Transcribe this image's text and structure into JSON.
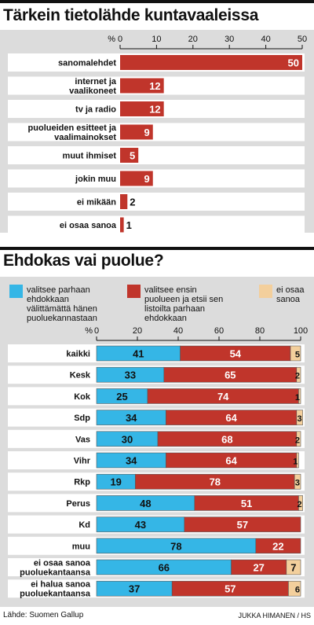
{
  "colors": {
    "red": "#c0352b",
    "blue": "#35b6e6",
    "beige": "#f3cf9c",
    "panel": "#dcdcdc",
    "row": "#ffffff",
    "text": "#111111"
  },
  "chart_data": [
    {
      "type": "bar",
      "orientation": "horizontal",
      "title": "Tärkein tietolähde kuntavaaleissa",
      "axis_unit": "%",
      "xlim": [
        0,
        50
      ],
      "ticks": [
        "0",
        "10",
        "20",
        "30",
        "40",
        "50"
      ],
      "categories": [
        "sanomalehdet",
        "internet ja vaalikoneet",
        "tv ja radio",
        "puolueiden esitteet ja vaalimainokset",
        "muut ihmiset",
        "jokin muu",
        "ei mikään",
        "ei osaa sanoa"
      ],
      "values": [
        50,
        12,
        12,
        9,
        5,
        9,
        2,
        1
      ]
    },
    {
      "type": "bar",
      "orientation": "horizontal",
      "stacked": true,
      "title": "Ehdokas vai puolue?",
      "axis_unit": "%",
      "xlim": [
        0,
        100
      ],
      "ticks": [
        "0",
        "20",
        "40",
        "60",
        "80",
        "100"
      ],
      "legend": [
        "valitsee parhaan ehdokkaan välittämättä hänen puoluekannastaan",
        "valitsee ensin puolueen ja etsii sen listoilta parhaan ehdokkaan",
        "ei osaa sanoa"
      ],
      "categories": [
        "kaikki",
        "Kesk",
        "Kok",
        "Sdp",
        "Vas",
        "Vihr",
        "Rkp",
        "Perus",
        "Kd",
        "muu",
        "ei osaa sanoa puoluekantaansa",
        "ei halua sanoa puoluekantaansa"
      ],
      "series": [
        {
          "name": "valitsee parhaan ehdokkaan välittämättä hänen puoluekannastaan",
          "values": [
            41,
            33,
            25,
            34,
            30,
            34,
            19,
            48,
            43,
            78,
            66,
            37
          ]
        },
        {
          "name": "valitsee ensin puolueen ja etsii sen listoilta parhaan ehdokkaan",
          "values": [
            54,
            65,
            74,
            64,
            68,
            64,
            78,
            51,
            57,
            22,
            27,
            57
          ]
        },
        {
          "name": "ei osaa sanoa",
          "values": [
            5,
            2,
            1,
            3,
            2,
            1,
            3,
            2,
            null,
            null,
            7,
            6
          ]
        }
      ]
    }
  ],
  "footer": {
    "source": "Lähde: Suomen Gallup",
    "credit": "JUKKA HIMANEN / HS"
  }
}
